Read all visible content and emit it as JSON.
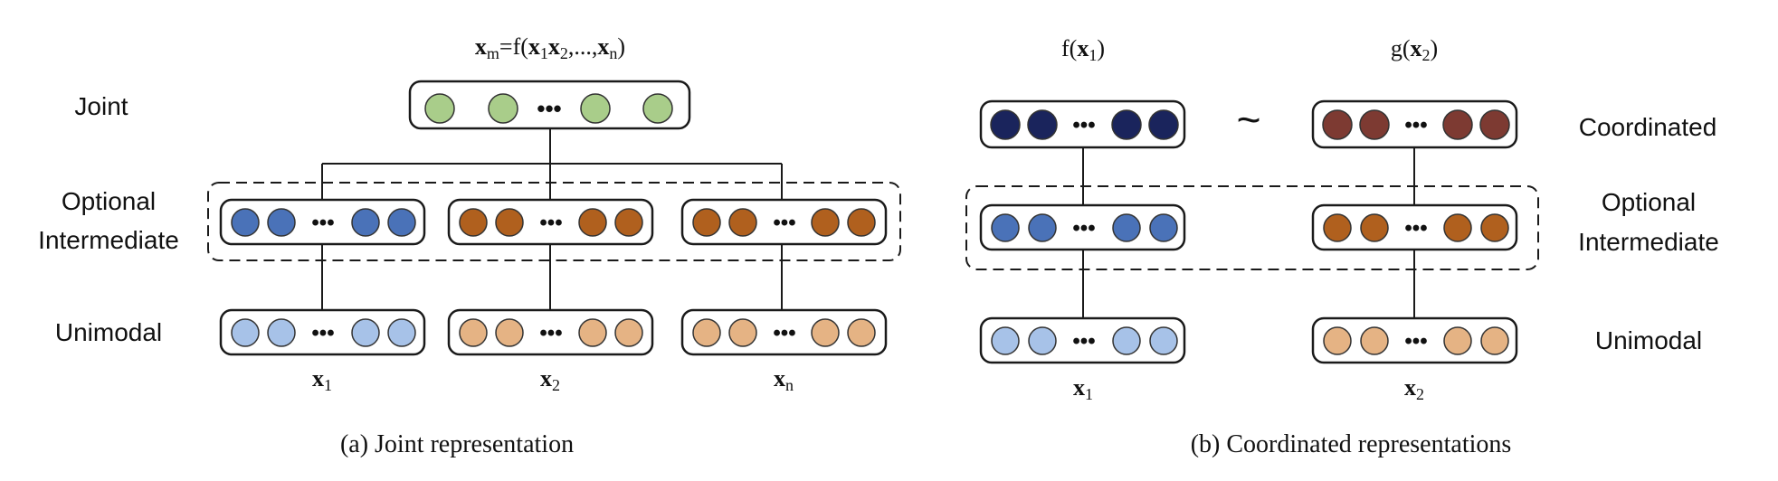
{
  "colors": {
    "joint": "#a9cd8a",
    "inter_blue": "#4a72b8",
    "inter_orange": "#b0601e",
    "uni_blue": "#a7c2e8",
    "uni_orange": "#e5b384",
    "coord_navy": "#1a245c",
    "coord_red": "#7d3a32",
    "stroke": "#1a1a1a"
  },
  "left_panel": {
    "top_formula": {
      "main": "x",
      "main_sub": "m",
      "eq": "=f(",
      "a": "x",
      "a_sub": "1",
      "b": "x",
      "b_sub": "2",
      "mid": ",...,",
      "c": "x",
      "c_sub": "n",
      "close": ")"
    },
    "row_labels": {
      "joint": "Joint",
      "optional_1": "Optional",
      "optional_2": "Intermediate",
      "unimodal": "Unimodal"
    },
    "inputs": [
      {
        "var": "x",
        "sub": "1"
      },
      {
        "var": "x",
        "sub": "2"
      },
      {
        "var": "x",
        "sub": "n"
      }
    ],
    "caption": "(a) Joint representation"
  },
  "right_panel": {
    "heads": [
      {
        "fn": "f(",
        "var": "x",
        "sub": "1",
        "close": ")"
      },
      {
        "fn": "g(",
        "var": "x",
        "sub": "2",
        "close": ")"
      }
    ],
    "similarity_symbol": "~",
    "row_labels": {
      "coordinated": "Coordinated",
      "optional_1": "Optional",
      "optional_2": "Intermediate",
      "unimodal": "Unimodal"
    },
    "inputs": [
      {
        "var": "x",
        "sub": "1"
      },
      {
        "var": "x",
        "sub": "2"
      }
    ],
    "caption": "(b) Coordinated representations"
  },
  "ellipsis": "•••"
}
